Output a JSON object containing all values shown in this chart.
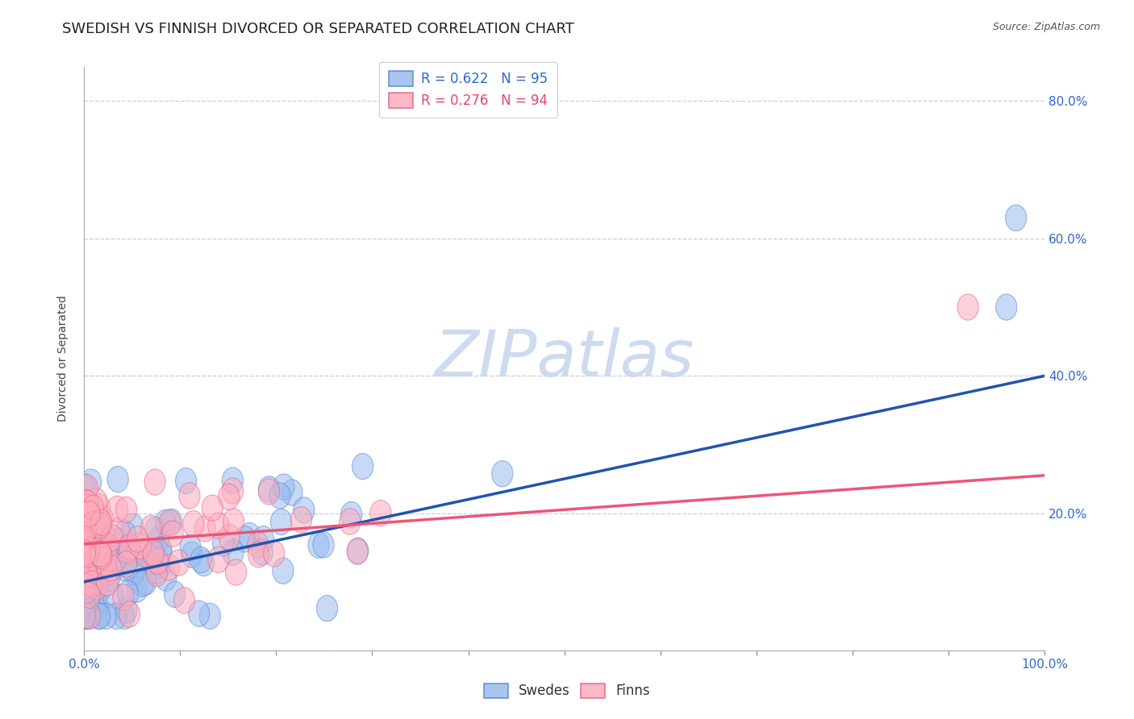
{
  "title": "SWEDISH VS FINNISH DIVORCED OR SEPARATED CORRELATION CHART",
  "source": "Source: ZipAtlas.com",
  "ylabel": "Divorced or Separated",
  "xlim": [
    0,
    1.0
  ],
  "ylim": [
    0,
    0.85
  ],
  "xtick_positions": [
    0.0,
    0.1,
    0.2,
    0.3,
    0.4,
    0.5,
    0.6,
    0.7,
    0.8,
    0.9,
    1.0
  ],
  "xticklabels": [
    "0.0%",
    "",
    "",
    "",
    "",
    "",
    "",
    "",
    "",
    "",
    "100.0%"
  ],
  "ytick_positions": [
    0.0,
    0.2,
    0.4,
    0.6,
    0.8
  ],
  "yticklabels": [
    "",
    "20.0%",
    "40.0%",
    "60.0%",
    "80.0%"
  ],
  "legend_swedes": "Swedes",
  "legend_finns": "Finns",
  "r_swedes": 0.622,
  "n_swedes": 95,
  "r_finns": 0.276,
  "n_finns": 94,
  "blue_face": "#99BBEE",
  "blue_edge": "#5588CC",
  "pink_face": "#FFAABB",
  "pink_edge": "#DD6688",
  "blue_line_color": "#2255AA",
  "pink_line_color": "#EE5577",
  "grid_color": "#CCCCDD",
  "background_color": "#FFFFFF",
  "watermark_color": "#C8D8EE",
  "title_fontsize": 13,
  "tick_fontsize": 11,
  "legend_fontsize": 12,
  "blue_text_color": "#3366CC",
  "pink_text_color": "#EE4466",
  "swedes_line_y0": 0.1,
  "swedes_line_y1": 0.4,
  "finns_line_y0": 0.155,
  "finns_line_y1": 0.255
}
